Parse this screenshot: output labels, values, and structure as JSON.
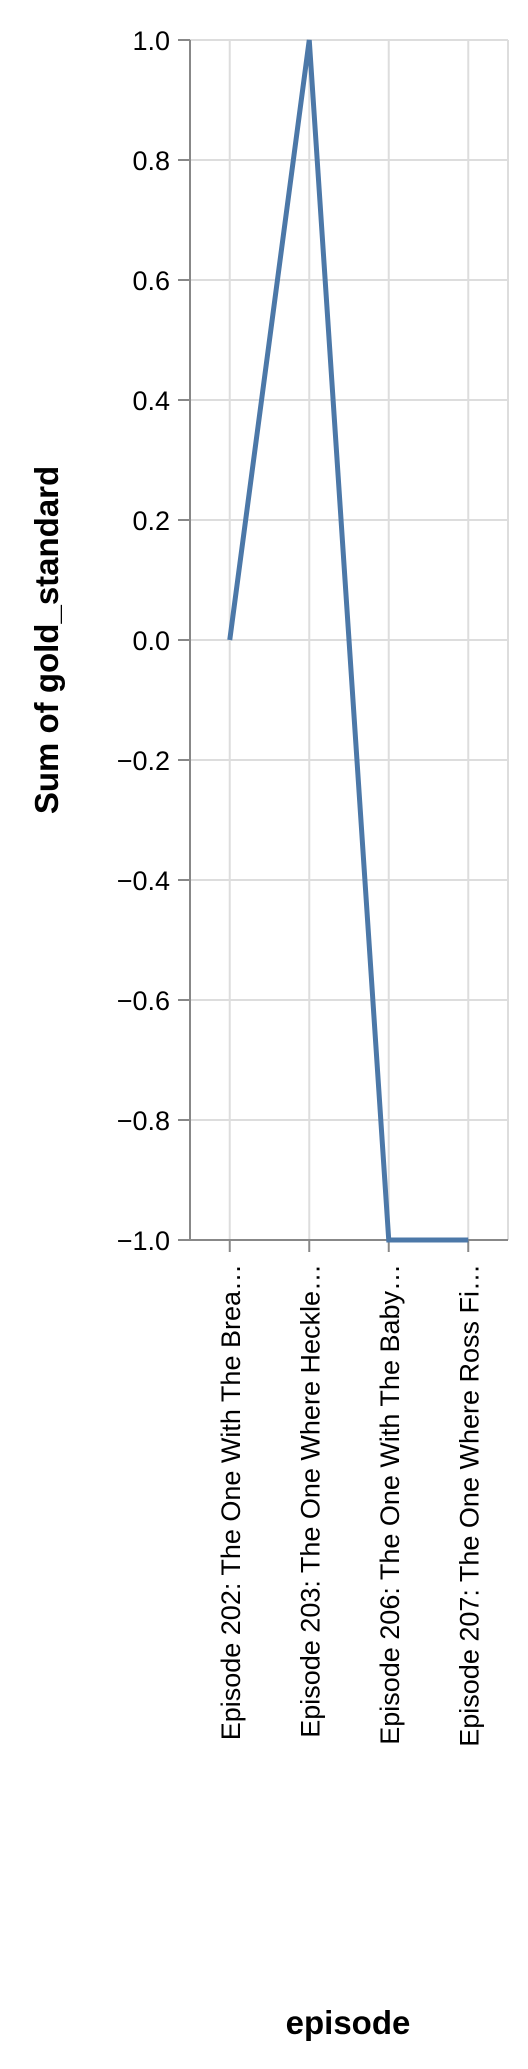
{
  "chart_data": {
    "type": "line",
    "title": "",
    "xlabel": "episode",
    "ylabel": "Sum of gold_standard",
    "categories": [
      "Episode 202: The One With The Brea…",
      "Episode 203: The One Where Heckle…",
      "Episode 206: The One With The Baby…",
      "Episode 207: The One Where Ross Fi…"
    ],
    "series": [
      {
        "values": [
          0,
          1,
          -1,
          -1
        ]
      }
    ],
    "ylim": [
      -1.0,
      1.0
    ],
    "yticks": [
      "1.0",
      "0.8",
      "0.6",
      "0.4",
      "0.2",
      "0.0",
      "−0.2",
      "−0.4",
      "−0.6",
      "−0.8",
      "−1.0"
    ],
    "ytick_values": [
      1.0,
      0.8,
      0.6,
      0.4,
      0.2,
      0.0,
      -0.2,
      -0.4,
      -0.6,
      -0.8,
      -1.0
    ],
    "grid": true,
    "colors": {
      "line": "#4c78a8",
      "grid": "#dddddd",
      "axis": "#888888"
    }
  }
}
